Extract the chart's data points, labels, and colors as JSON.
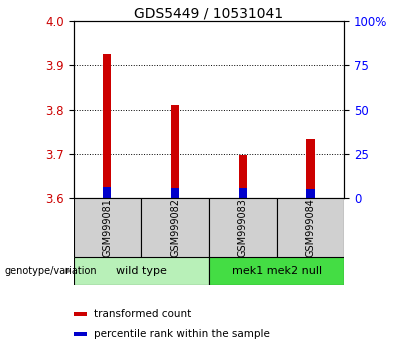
{
  "title": "GDS5449 / 10531041",
  "samples": [
    "GSM999081",
    "GSM999082",
    "GSM999083",
    "GSM999084"
  ],
  "red_values": [
    3.925,
    3.81,
    3.698,
    3.735
  ],
  "blue_values": [
    3.625,
    3.624,
    3.624,
    3.622
  ],
  "bar_base": 3.6,
  "ylim": [
    3.6,
    4.0
  ],
  "yticks_left": [
    3.6,
    3.7,
    3.8,
    3.9,
    4.0
  ],
  "yticks_right": [
    0,
    25,
    50,
    75,
    100
  ],
  "yticks_right_labels": [
    "0",
    "25",
    "50",
    "75",
    "100%"
  ],
  "groups": [
    {
      "label": "wild type",
      "samples": [
        0,
        1
      ]
    },
    {
      "label": "mek1 mek2 null",
      "samples": [
        2,
        3
      ]
    }
  ],
  "group_colors": [
    "#b8f0b8",
    "#44dd44"
  ],
  "group_label_text": "genotype/variation",
  "red_color": "#cc0000",
  "blue_color": "#0000cc",
  "bar_width": 0.12,
  "sample_box_color": "#d0d0d0",
  "legend_items": [
    {
      "color": "#cc0000",
      "label": "transformed count"
    },
    {
      "color": "#0000cc",
      "label": "percentile rank within the sample"
    }
  ],
  "title_fontsize": 10,
  "tick_fontsize": 8.5
}
